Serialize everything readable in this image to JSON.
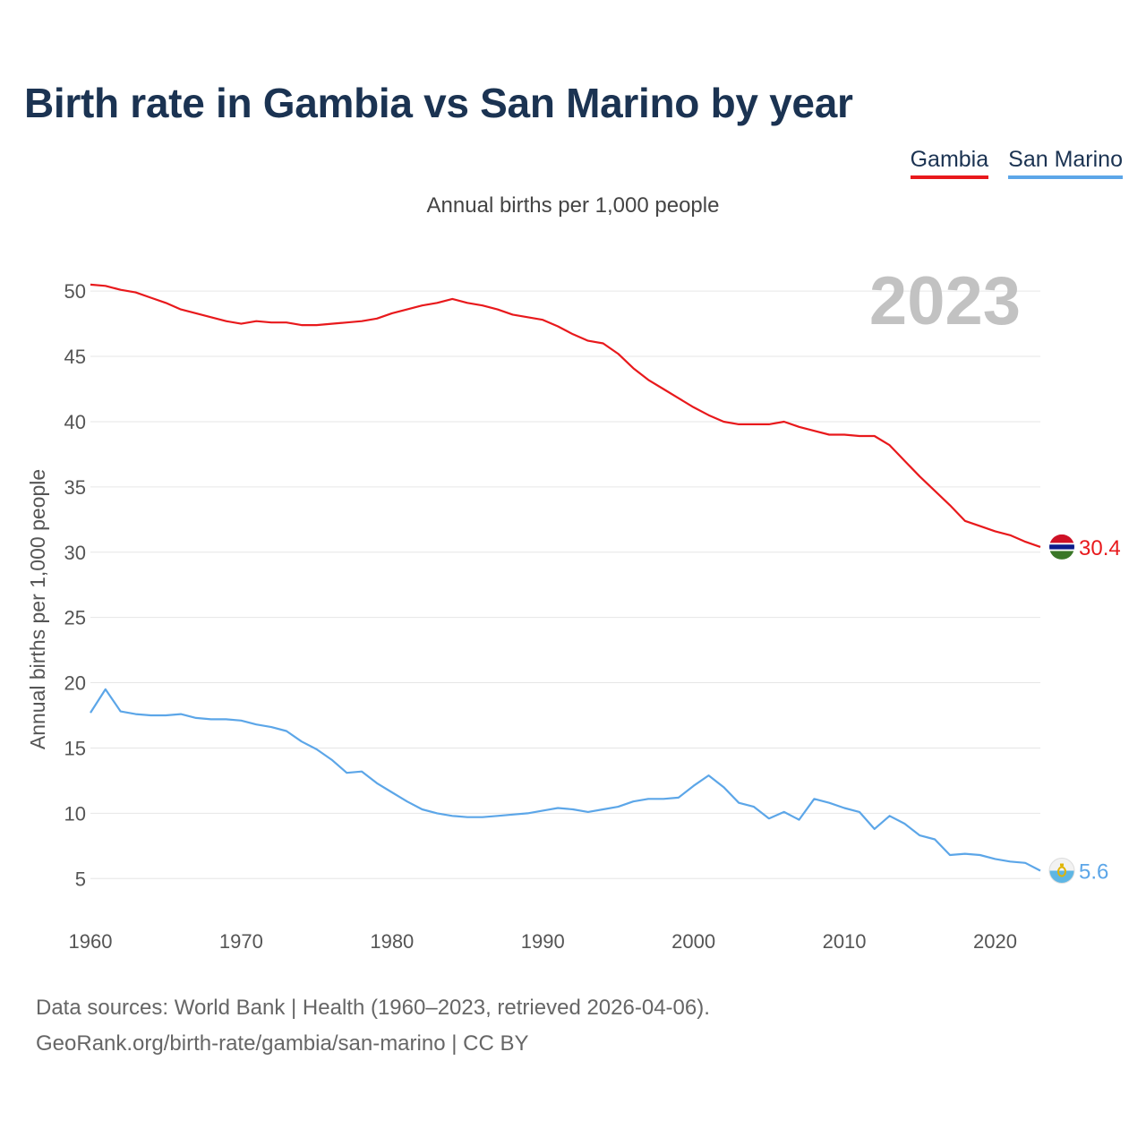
{
  "title": "Birth rate in Gambia vs San Marino by year",
  "subtitle": "Annual births per 1,000 people",
  "legend": [
    {
      "name": "Gambia",
      "color": "#e8191c"
    },
    {
      "name": "San Marino",
      "color": "#5ca6e8"
    }
  ],
  "year_label": "2023",
  "footer": {
    "line1": "Data sources: World Bank | Health (1960–2023, retrieved 2026-04-06).",
    "line2": "GeoRank.org/birth-rate/gambia/san-marino | CC BY"
  },
  "chart_data": {
    "type": "line",
    "title": "Birth rate in Gambia vs San Marino by year",
    "xlabel": "",
    "ylabel": "Annual births per 1,000 people",
    "xlim": [
      1960,
      2023
    ],
    "ylim": [
      2,
      52
    ],
    "yticks": [
      5,
      10,
      15,
      20,
      25,
      30,
      35,
      40,
      45,
      50
    ],
    "xticks": [
      1960,
      1970,
      1980,
      1990,
      2000,
      2010,
      2020
    ],
    "grid": true,
    "legend_position": "top-right",
    "x": [
      1960,
      1961,
      1962,
      1963,
      1964,
      1965,
      1966,
      1967,
      1968,
      1969,
      1970,
      1971,
      1972,
      1973,
      1974,
      1975,
      1976,
      1977,
      1978,
      1979,
      1980,
      1981,
      1982,
      1983,
      1984,
      1985,
      1986,
      1987,
      1988,
      1989,
      1990,
      1991,
      1992,
      1993,
      1994,
      1995,
      1996,
      1997,
      1998,
      1999,
      2000,
      2001,
      2002,
      2003,
      2004,
      2005,
      2006,
      2007,
      2008,
      2009,
      2010,
      2011,
      2012,
      2013,
      2014,
      2015,
      2016,
      2017,
      2018,
      2019,
      2020,
      2021,
      2022,
      2023
    ],
    "series": [
      {
        "name": "Gambia",
        "color": "#e8191c",
        "end_label": "30.4",
        "values": [
          50.5,
          50.4,
          50.1,
          49.9,
          49.5,
          49.1,
          48.6,
          48.3,
          48.0,
          47.7,
          47.5,
          47.7,
          47.6,
          47.6,
          47.4,
          47.4,
          47.5,
          47.6,
          47.7,
          47.9,
          48.3,
          48.6,
          48.9,
          49.1,
          49.4,
          49.1,
          48.9,
          48.6,
          48.2,
          48.0,
          47.8,
          47.3,
          46.7,
          46.2,
          46.0,
          45.2,
          44.1,
          43.2,
          42.5,
          41.8,
          41.1,
          40.5,
          40.0,
          39.8,
          39.8,
          39.8,
          40.0,
          39.6,
          39.3,
          39.0,
          39.0,
          38.9,
          38.9,
          38.2,
          37.0,
          35.8,
          34.7,
          33.6,
          32.4,
          32.0,
          31.6,
          31.3,
          30.8,
          30.4
        ]
      },
      {
        "name": "San Marino",
        "color": "#5ca6e8",
        "end_label": "5.6",
        "values": [
          17.7,
          19.5,
          17.8,
          17.6,
          17.5,
          17.5,
          17.6,
          17.3,
          17.2,
          17.2,
          17.1,
          16.8,
          16.6,
          16.3,
          15.5,
          14.9,
          14.1,
          13.1,
          13.2,
          12.3,
          11.6,
          10.9,
          10.3,
          10.0,
          9.8,
          9.7,
          9.7,
          9.8,
          9.9,
          10.0,
          10.2,
          10.4,
          10.3,
          10.1,
          10.3,
          10.5,
          10.9,
          11.1,
          11.1,
          11.2,
          12.1,
          12.9,
          12.0,
          10.8,
          10.5,
          9.6,
          10.1,
          9.5,
          11.1,
          10.8,
          10.4,
          10.1,
          8.8,
          9.8,
          9.2,
          8.3,
          8.0,
          6.8,
          6.9,
          6.8,
          6.5,
          6.3,
          6.2,
          5.6
        ]
      }
    ]
  }
}
